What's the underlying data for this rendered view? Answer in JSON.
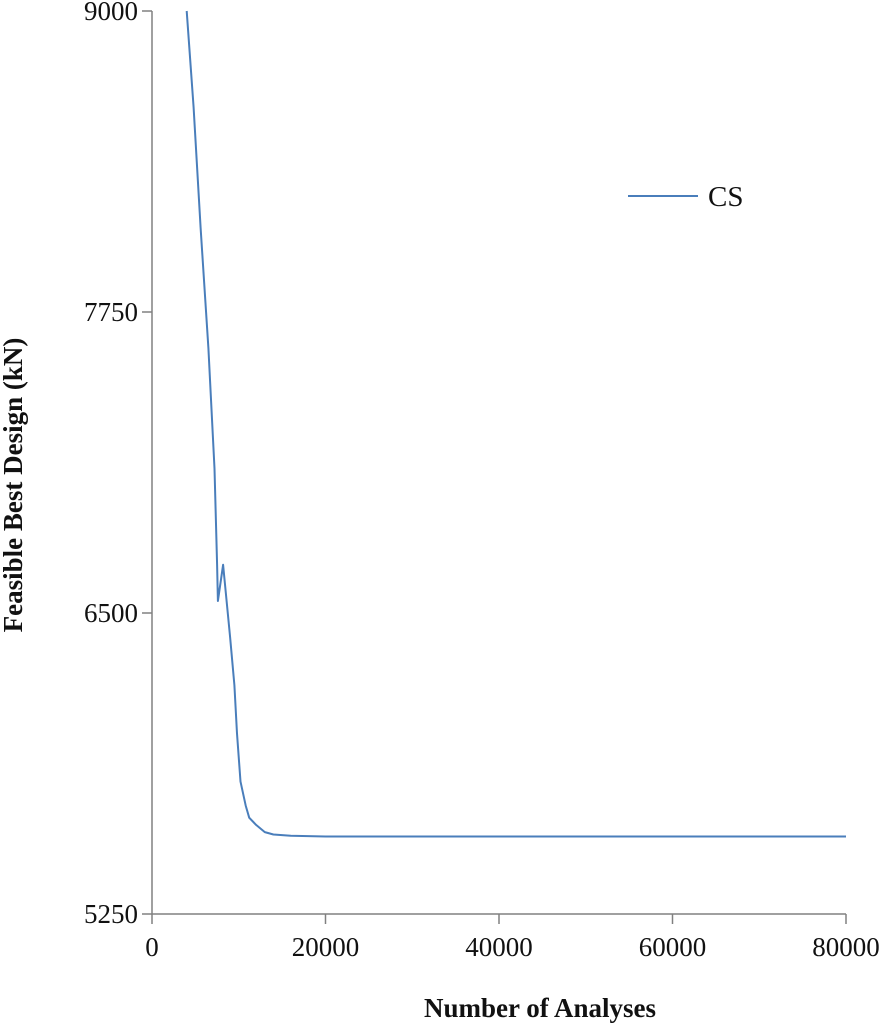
{
  "chart_data": {
    "type": "line",
    "xlabel": "Number of Analyses",
    "ylabel": "Feasible Best Design (kN)",
    "xlim": [
      0,
      80000
    ],
    "ylim": [
      5250,
      9000
    ],
    "x_ticks": [
      "0",
      "20000",
      "40000",
      "60000",
      "80000"
    ],
    "y_ticks": [
      "5250",
      "6500",
      "7750",
      "9000"
    ],
    "grid": false,
    "legend_position": "top-right",
    "series": [
      {
        "name": "CS",
        "color": "#4a7ebb",
        "points": [
          [
            4000,
            9000
          ],
          [
            4800,
            8600
          ],
          [
            5600,
            8100
          ],
          [
            6500,
            7600
          ],
          [
            7200,
            7100
          ],
          [
            7500,
            6700
          ],
          [
            7600,
            6550
          ],
          [
            8200,
            6700
          ],
          [
            9000,
            6400
          ],
          [
            9500,
            6200
          ],
          [
            9800,
            6000
          ],
          [
            10200,
            5800
          ],
          [
            10800,
            5700
          ],
          [
            11200,
            5650
          ],
          [
            12000,
            5620
          ],
          [
            13000,
            5590
          ],
          [
            14000,
            5580
          ],
          [
            16000,
            5575
          ],
          [
            20000,
            5572
          ],
          [
            30000,
            5572
          ],
          [
            40000,
            5572
          ],
          [
            50000,
            5572
          ],
          [
            60000,
            5572
          ],
          [
            70000,
            5572
          ],
          [
            80000,
            5572
          ]
        ]
      }
    ]
  }
}
